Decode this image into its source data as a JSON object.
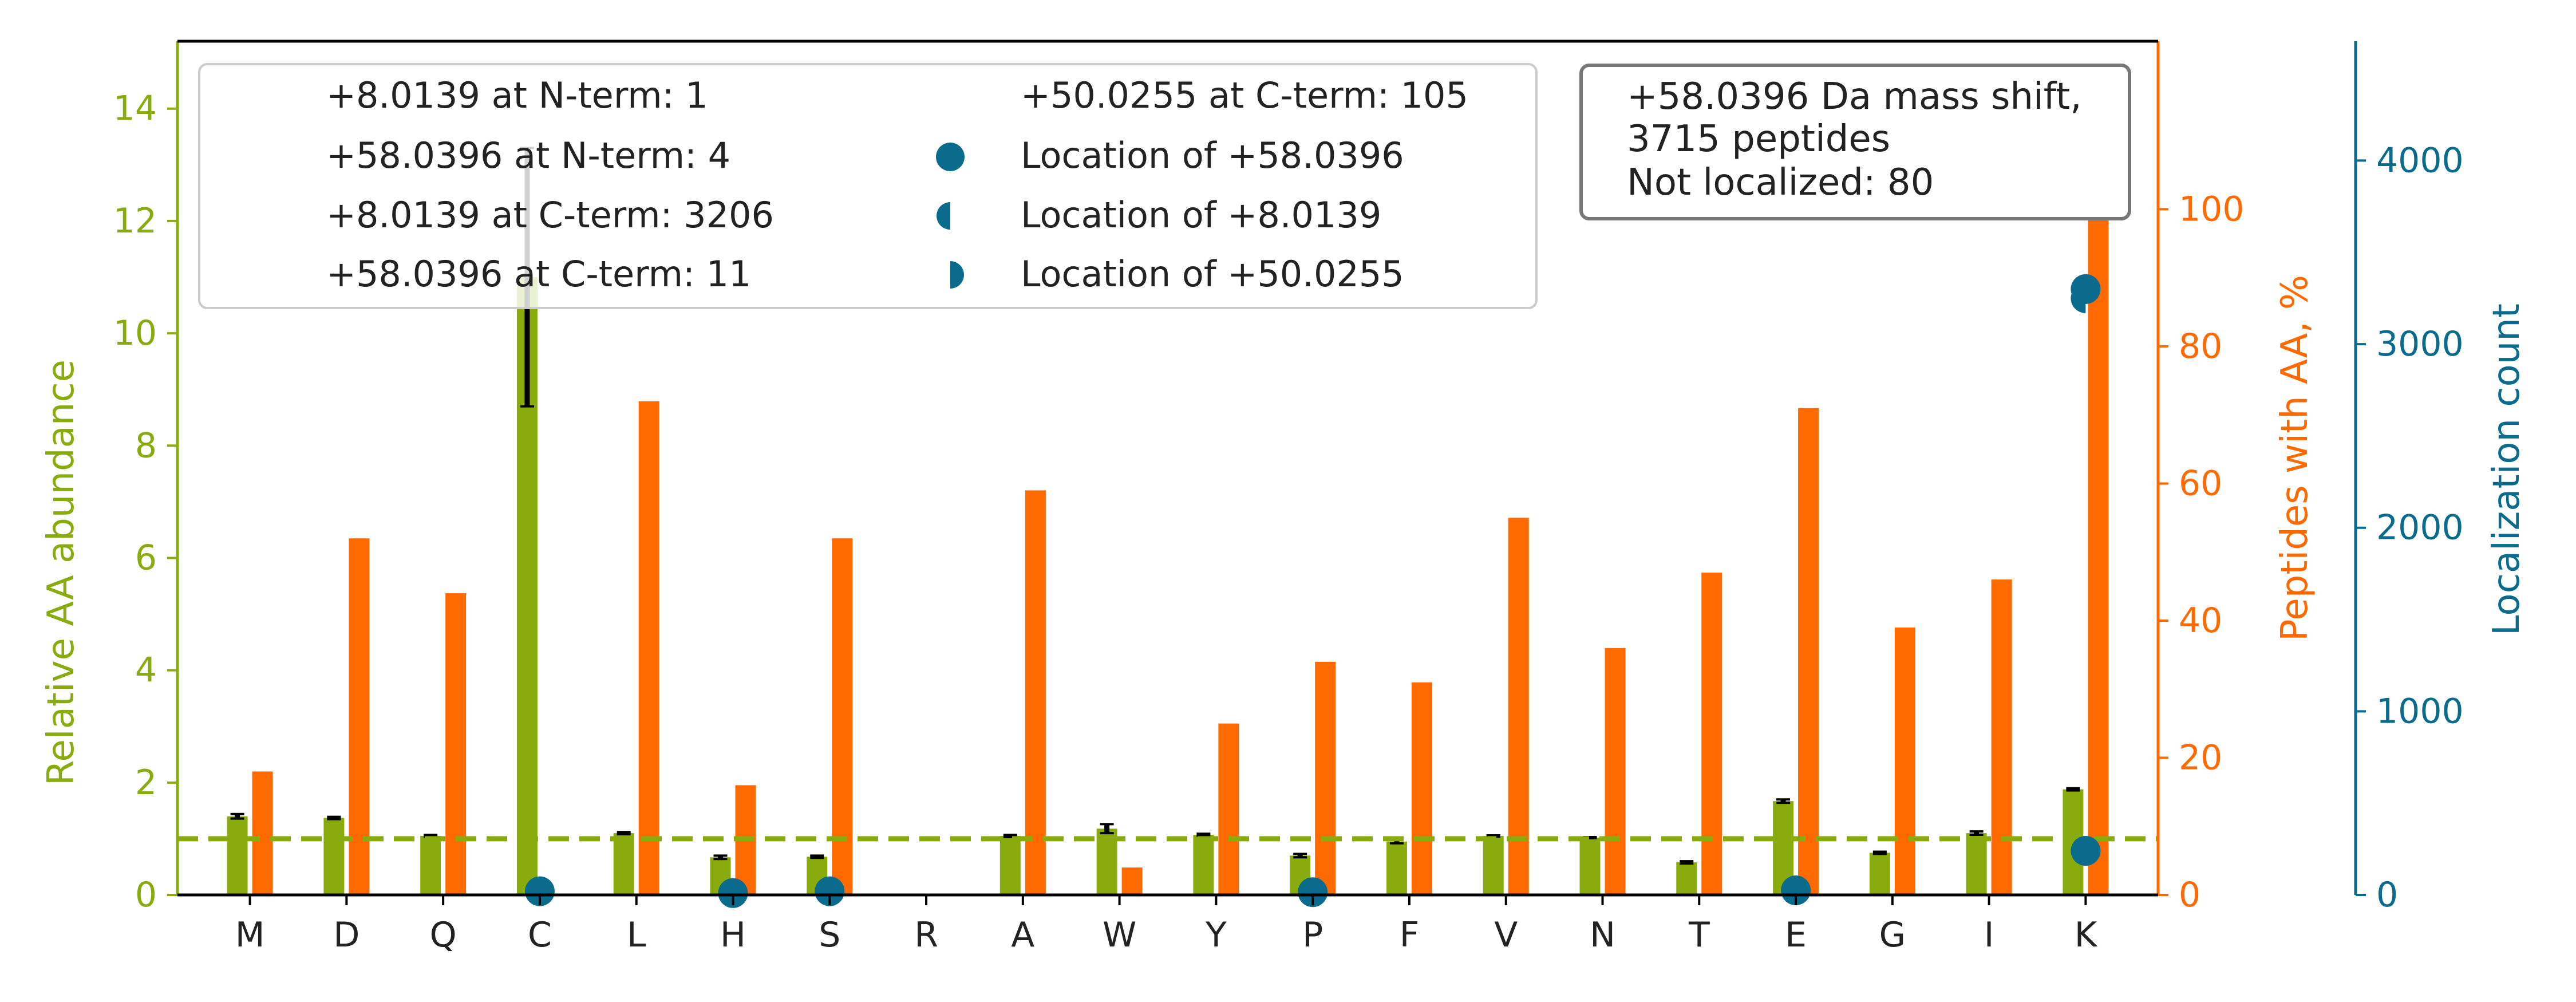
{
  "colors": {
    "abundance": "#8aab0e",
    "peptides": "#ff6a00",
    "localization": "#0a6b8c",
    "axis": "#000000",
    "text": "#222222",
    "reference_line": "#8aab0e"
  },
  "chart_data": {
    "type": "bar",
    "categories": [
      "M",
      "D",
      "Q",
      "C",
      "L",
      "H",
      "S",
      "R",
      "A",
      "W",
      "Y",
      "P",
      "F",
      "V",
      "N",
      "T",
      "E",
      "G",
      "I",
      "K"
    ],
    "series": [
      {
        "axis": "left",
        "values": [
          1.4,
          1.37,
          1.05,
          11.0,
          1.1,
          0.67,
          0.68,
          0.0,
          1.05,
          1.18,
          1.07,
          0.7,
          0.95,
          1.05,
          1.02,
          0.58,
          1.67,
          0.75,
          1.1,
          1.88
        ],
        "errors": [
          0.04,
          0.02,
          0.02,
          2.3,
          0.02,
          0.03,
          0.02,
          0.0,
          0.02,
          0.08,
          0.02,
          0.03,
          0.03,
          0.01,
          0.01,
          0.02,
          0.03,
          0.02,
          0.03,
          0.02
        ]
      },
      {
        "axis": "right",
        "values": [
          18,
          52,
          44,
          0,
          72,
          16,
          52,
          0,
          59,
          4,
          25,
          34,
          31,
          55,
          36,
          47,
          71,
          39,
          46,
          100
        ]
      },
      {
        "axis": "far-right",
        "kind": "scatter",
        "points": [
          {
            "category": "C",
            "value": 20,
            "marker": "full"
          },
          {
            "category": "H",
            "value": 10,
            "marker": "full"
          },
          {
            "category": "S",
            "value": 20,
            "marker": "full"
          },
          {
            "category": "P",
            "value": 15,
            "marker": "full"
          },
          {
            "category": "E",
            "value": 25,
            "marker": "full"
          },
          {
            "category": "K",
            "value": 3300,
            "marker": "full"
          },
          {
            "category": "K",
            "value": 3250,
            "marker": "left-half"
          },
          {
            "category": "K",
            "value": 240,
            "marker": "full"
          }
        ]
      }
    ],
    "reference_line": {
      "value": 1,
      "style": "dashed"
    },
    "axes": {
      "left": {
        "label": "Relative AA abundance",
        "ylim": [
          0,
          15.2
        ],
        "ticks": [
          0,
          2,
          4,
          6,
          8,
          10,
          12,
          14
        ]
      },
      "right": {
        "label": "Peptides with AA, %",
        "ylim": [
          0,
          124.5
        ],
        "ticks": [
          0,
          20,
          40,
          60,
          80,
          100
        ]
      },
      "far_right": {
        "label": "Localization count",
        "ylim": [
          0,
          4650
        ],
        "ticks": [
          0,
          1000,
          2000,
          3000,
          4000
        ]
      }
    },
    "legend": {
      "placement": "top-left",
      "entries": [
        {
          "label": "+8.0139 at N-term: 1",
          "marker": "none"
        },
        {
          "label": "+58.0396 at N-term: 4",
          "marker": "none"
        },
        {
          "label": "+8.0139 at C-term: 3206",
          "marker": "none"
        },
        {
          "label": "+58.0396 at C-term: 11",
          "marker": "none"
        },
        {
          "label": "+50.0255 at C-term: 105",
          "marker": "none"
        },
        {
          "label": "Location of +58.0396",
          "marker": "full"
        },
        {
          "label": "Location of +8.0139",
          "marker": "left-half"
        },
        {
          "label": "Location of +50.0255",
          "marker": "right-half"
        }
      ]
    },
    "annotation_box": {
      "placement": "top-right",
      "lines": [
        "+58.0396 Da mass shift,",
        "3715 peptides",
        "Not localized: 80"
      ]
    }
  }
}
